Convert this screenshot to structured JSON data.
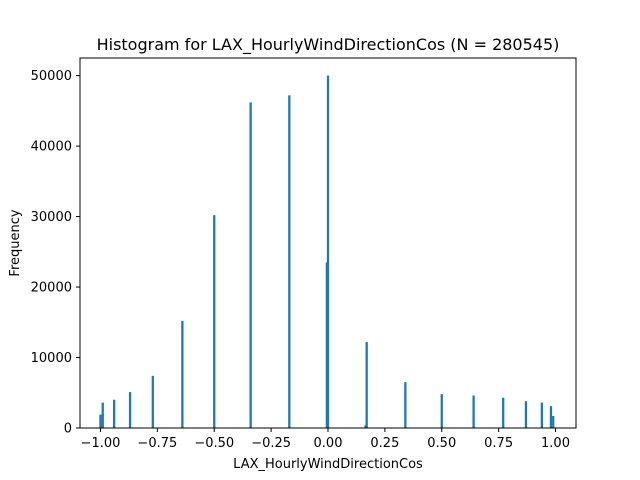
{
  "chart_data": {
    "type": "bar",
    "title": "Histogram for LAX_HourlyWindDirectionCos (N = 280545)",
    "xlabel": "LAX_HourlyWindDirectionCos",
    "ylabel": "Frequency",
    "xlim": [
      -1.09,
      1.09
    ],
    "ylim": [
      0,
      52500
    ],
    "xticks": [
      -1.0,
      -0.75,
      -0.5,
      -0.25,
      0.0,
      0.25,
      0.5,
      0.75,
      1.0
    ],
    "xtick_labels": [
      "−1.00",
      "−0.75",
      "−0.50",
      "−0.25",
      "0.00",
      "0.25",
      "0.50",
      "0.75",
      "1.00"
    ],
    "yticks": [
      0,
      10000,
      20000,
      30000,
      40000,
      50000
    ],
    "ytick_labels": [
      "0",
      "10000",
      "20000",
      "30000",
      "40000",
      "50000"
    ],
    "bar_color": "#1f77b4",
    "bar_width": 0.01,
    "grid": false,
    "bins": [
      {
        "x": -1.0,
        "value": 1900
      },
      {
        "x": -0.99,
        "value": 3600
      },
      {
        "x": -0.94,
        "value": 4000
      },
      {
        "x": -0.87,
        "value": 5100
      },
      {
        "x": -0.77,
        "value": 7400
      },
      {
        "x": -0.64,
        "value": 15200
      },
      {
        "x": -0.5,
        "value": 30200
      },
      {
        "x": -0.34,
        "value": 46200
      },
      {
        "x": -0.17,
        "value": 47200
      },
      {
        "x": 0.0,
        "value": 50000
      },
      {
        "x": -0.005,
        "value": 23500
      },
      {
        "x": 0.165,
        "value": 400
      },
      {
        "x": 0.17,
        "value": 12200
      },
      {
        "x": 0.34,
        "value": 6500
      },
      {
        "x": 0.5,
        "value": 4800
      },
      {
        "x": 0.64,
        "value": 4600
      },
      {
        "x": 0.77,
        "value": 4300
      },
      {
        "x": 0.87,
        "value": 3800
      },
      {
        "x": 0.94,
        "value": 3600
      },
      {
        "x": 0.98,
        "value": 3100
      },
      {
        "x": 0.99,
        "value": 1700
      }
    ]
  }
}
